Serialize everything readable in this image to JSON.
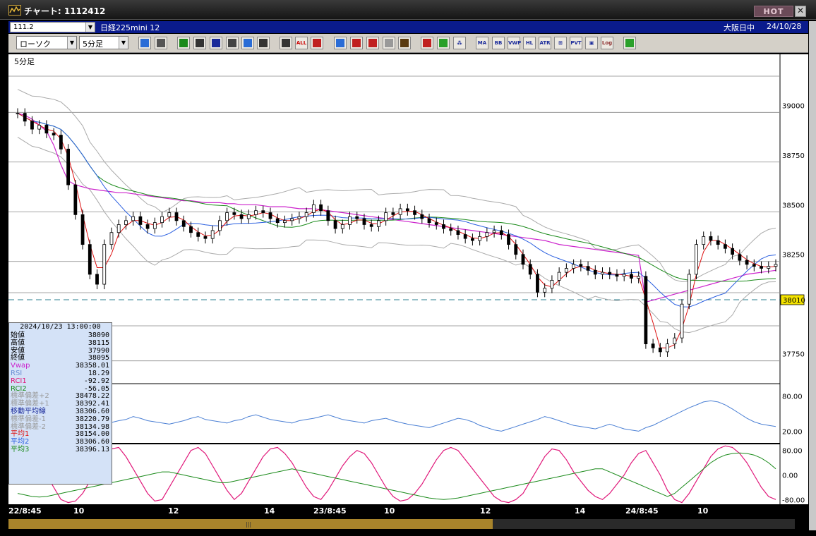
{
  "window": {
    "title": "チャート: 1112412",
    "hot_label": "HOT",
    "close_label": "✕"
  },
  "infobar": {
    "code_value": "111.2",
    "symbol_name": "日経225mini 12",
    "market_status": "大阪日中",
    "date": "24/10/28"
  },
  "toolbar": {
    "chart_type": "ローソク",
    "interval": "5分足",
    "buttons": [
      {
        "name": "zoom-icon",
        "color": "#2a6cd6"
      },
      {
        "name": "grid-icon",
        "color": "#555"
      },
      {
        "name": "pen-icon",
        "color": "#1a8a1a"
      },
      {
        "name": "line-tool-icon",
        "color": "#333"
      },
      {
        "name": "cursor-icon",
        "color": "#1a2a9a"
      },
      {
        "name": "page-icon",
        "color": "#444"
      },
      {
        "name": "trash-icon",
        "color": "#2a6cd6"
      },
      {
        "name": "candle-icon",
        "color": "#333"
      },
      {
        "name": "bar-icon",
        "color": "#333"
      },
      {
        "name": "all-icon",
        "text": "ALL",
        "color": "#c00"
      },
      {
        "name": "bird-icon",
        "color": "#c02020"
      },
      {
        "name": "search-plus-icon",
        "color": "#2a6cd6"
      },
      {
        "name": "compare-icon",
        "color": "#c02020"
      },
      {
        "name": "cross-icon",
        "color": "#c02020"
      },
      {
        "name": "gray-icon",
        "color": "#999"
      },
      {
        "name": "gear-icon",
        "color": "#5a3a10"
      },
      {
        "name": "brush-icon",
        "color": "#c02020"
      },
      {
        "name": "palette-icon",
        "color": "#2aa02a"
      },
      {
        "name": "chart-a-icon",
        "text": "⁂",
        "color": "#1a2a9a"
      },
      {
        "name": "ma-icon",
        "text": "MA",
        "color": "#1a2a9a"
      },
      {
        "name": "bb-icon",
        "text": "BB",
        "color": "#1a2a9a"
      },
      {
        "name": "vwap-icon",
        "text": "VWP",
        "color": "#1a2a9a"
      },
      {
        "name": "hl-icon",
        "text": "HL",
        "color": "#1a2a9a"
      },
      {
        "name": "atr-icon",
        "text": "ATR",
        "color": "#1a2a9a"
      },
      {
        "name": "pattern-icon",
        "text": "⊞",
        "color": "#1a2a9a"
      },
      {
        "name": "pvt-icon",
        "text": "PVT",
        "color": "#1a2a9a"
      },
      {
        "name": "window-icon",
        "text": "▣",
        "color": "#1a2a9a"
      },
      {
        "name": "log-icon",
        "text": "Log",
        "color": "#8a2a2a"
      },
      {
        "name": "export-icon",
        "color": "#2aa02a"
      }
    ]
  },
  "main_chart": {
    "interval_label": "5分足",
    "y_ticks": [
      "39000",
      "38750",
      "38500",
      "38250",
      "37750"
    ],
    "current_price": "38010",
    "colors": {
      "vwap": "#cc22cc",
      "ma1": "#dd1111",
      "ma2": "#2a5fe0",
      "ma3": "#1a8a1a",
      "band": "#aaaaaa",
      "candle": "#000000"
    }
  },
  "rsi_chart": {
    "y_ticks": [
      "80.00",
      "20.00"
    ],
    "color": "#4a7fd4"
  },
  "rci_chart": {
    "y_ticks": [
      "80.00",
      "0.00",
      "-80.00"
    ],
    "rci1_color": "#e0187a",
    "rci2_color": "#1a8a1a"
  },
  "x_axis": {
    "labels": [
      "22/8:45",
      "10",
      "12",
      "14",
      "23/8:45",
      "10",
      "12",
      "14",
      "24/8:45",
      "10"
    ]
  },
  "data_panel": {
    "datetime": "2024/10/23  13:00:00",
    "rows": [
      {
        "label": "始値",
        "value": "38090",
        "color": "#000000"
      },
      {
        "label": "高値",
        "value": "38115",
        "color": "#000000"
      },
      {
        "label": "安値",
        "value": "37990",
        "color": "#000000"
      },
      {
        "label": "終値",
        "value": "38095",
        "color": "#000000"
      },
      {
        "label": "Vwap",
        "value": "38358.01",
        "color": "#cc22cc"
      },
      {
        "label": "RSI",
        "value": "18.29",
        "color": "#6a8fd4"
      },
      {
        "label": "RCI1",
        "value": "-92.92",
        "color": "#e0187a"
      },
      {
        "label": "RCI2",
        "value": "-56.05",
        "color": "#1a8a1a"
      },
      {
        "label": "標準偏差+2",
        "value": "38478.22",
        "color": "#999999"
      },
      {
        "label": "標準偏差+1",
        "value": "38392.41",
        "color": "#999999"
      },
      {
        "label": "移動平均線",
        "value": "38306.60",
        "color": "#1a2a9a"
      },
      {
        "label": "標準偏差-1",
        "value": "38220.79",
        "color": "#999999"
      },
      {
        "label": "標準偏差-2",
        "value": "38134.98",
        "color": "#999999"
      },
      {
        "label": "平均1",
        "value": "38154.00",
        "color": "#dd1111"
      },
      {
        "label": "平均2",
        "value": "38306.60",
        "color": "#2a5fe0"
      },
      {
        "label": "平均3",
        "value": "38396.13",
        "color": "#1a8a1a"
      }
    ]
  },
  "chart_data": {
    "type": "line",
    "price_ylim": [
      37600,
      39150
    ],
    "close": [
      38960,
      38920,
      38880,
      38900,
      38860,
      38850,
      38780,
      38600,
      38450,
      38300,
      38150,
      38100,
      38300,
      38360,
      38400,
      38420,
      38440,
      38400,
      38380,
      38410,
      38440,
      38460,
      38420,
      38390,
      38360,
      38340,
      38330,
      38370,
      38420,
      38460,
      38450,
      38430,
      38450,
      38470,
      38460,
      38430,
      38410,
      38420,
      38430,
      38440,
      38460,
      38500,
      38470,
      38420,
      38380,
      38400,
      38440,
      38430,
      38400,
      38390,
      38420,
      38460,
      38450,
      38480,
      38470,
      38450,
      38430,
      38410,
      38400,
      38380,
      38370,
      38350,
      38330,
      38320,
      38340,
      38360,
      38370,
      38350,
      38300,
      38250,
      38200,
      38150,
      38060,
      38080,
      38120,
      38160,
      38180,
      38200,
      38190,
      38170,
      38150,
      38160,
      38150,
      38140,
      38150,
      38130,
      38140,
      37800,
      37780,
      37760,
      37800,
      37830,
      38000,
      38150,
      38300,
      38340,
      38320,
      38300,
      38280,
      38250,
      38220,
      38200,
      38190,
      38180,
      38190,
      38200
    ],
    "vwap": [
      38960,
      38950,
      38930,
      38900,
      38870,
      38800,
      38700,
      38620,
      38600,
      38590,
      38580,
      38575,
      38570,
      38565,
      38560,
      38560,
      38555,
      38550,
      38545,
      38540,
      38535,
      38530,
      38525,
      38520,
      38520,
      38515,
      38510,
      38510,
      38510,
      38505,
      38505,
      38500,
      38500,
      38500,
      38495,
      38490,
      38490,
      38490,
      38485,
      38480,
      38480,
      38480,
      38475,
      38470,
      38465,
      38460,
      38455,
      38450,
      38445,
      38440,
      38435,
      38430,
      38425,
      38420,
      38415,
      38410,
      38405,
      38400,
      38395,
      38390,
      38385,
      38380,
      38375,
      38370,
      38365,
      38360,
      38355,
      38350,
      38345,
      38340,
      38335,
      38330,
      38325,
      38320,
      38310,
      38300,
      38295,
      38290,
      38285,
      38280,
      38275,
      38270,
      38265,
      38260,
      38255,
      38250,
      38245,
      38010,
      38020,
      38030,
      38040,
      38050,
      38060,
      38070,
      38080,
      38090,
      38100,
      38110,
      38120,
      38130,
      38140,
      38150,
      38155,
      38160,
      38165,
      38170
    ],
    "rsi_ylim": [
      0,
      100
    ],
    "rsi": [
      35,
      38,
      42,
      40,
      45,
      50,
      55,
      48,
      44,
      40,
      35,
      30,
      32,
      35,
      38,
      40,
      45,
      42,
      38,
      36,
      34,
      32,
      35,
      38,
      42,
      45,
      40,
      38,
      36,
      34,
      38,
      40,
      45,
      48,
      44,
      40,
      38,
      36,
      34,
      38,
      40,
      42,
      45,
      48,
      44,
      40,
      38,
      36,
      34,
      38,
      40,
      42,
      38,
      35,
      32,
      30,
      28,
      26,
      30,
      34,
      38,
      42,
      40,
      36,
      30,
      26,
      22,
      20,
      24,
      28,
      32,
      36,
      40,
      45,
      42,
      38,
      34,
      30,
      28,
      26,
      24,
      28,
      32,
      28,
      24,
      22,
      20,
      26,
      30,
      36,
      42,
      48,
      54,
      60,
      65,
      70,
      72,
      70,
      65,
      58,
      50,
      42,
      36,
      32,
      30,
      28
    ],
    "rci_ylim": [
      -100,
      100
    ],
    "rci1": [
      80,
      60,
      40,
      20,
      0,
      -40,
      -80,
      -90,
      -85,
      -60,
      -20,
      20,
      60,
      85,
      90,
      60,
      20,
      -20,
      -60,
      -85,
      -80,
      -40,
      0,
      40,
      80,
      90,
      70,
      30,
      -10,
      -50,
      -80,
      -60,
      -20,
      20,
      60,
      85,
      90,
      70,
      40,
      0,
      -40,
      -70,
      -80,
      -50,
      -10,
      30,
      60,
      80,
      70,
      40,
      0,
      -40,
      -70,
      -85,
      -80,
      -60,
      -30,
      10,
      50,
      80,
      90,
      80,
      50,
      20,
      -10,
      -40,
      -70,
      -85,
      -90,
      -80,
      -60,
      -20,
      20,
      60,
      85,
      80,
      50,
      10,
      -20,
      -50,
      -70,
      -80,
      -60,
      -30,
      0,
      40,
      70,
      80,
      40,
      0,
      -50,
      -80,
      -90,
      -60,
      -20,
      20,
      60,
      85,
      95,
      90,
      70,
      40,
      0,
      -40,
      -70,
      -80
    ],
    "rci2": [
      -60,
      -65,
      -70,
      -72,
      -70,
      -65,
      -60,
      -55,
      -50,
      -45,
      -40,
      -35,
      -30,
      -25,
      -20,
      -15,
      -10,
      -5,
      0,
      5,
      10,
      10,
      5,
      0,
      -5,
      -10,
      -15,
      -20,
      -25,
      -25,
      -20,
      -15,
      -10,
      -5,
      0,
      5,
      10,
      15,
      20,
      15,
      10,
      5,
      0,
      -5,
      -10,
      -15,
      -20,
      -25,
      -30,
      -35,
      -40,
      -45,
      -50,
      -55,
      -60,
      -65,
      -70,
      -75,
      -78,
      -80,
      -78,
      -75,
      -70,
      -65,
      -60,
      -55,
      -50,
      -45,
      -40,
      -35,
      -30,
      -25,
      -20,
      -15,
      -10,
      -5,
      0,
      5,
      10,
      15,
      20,
      20,
      10,
      0,
      -10,
      -20,
      -30,
      -40,
      -50,
      -60,
      -70,
      -60,
      -40,
      -20,
      0,
      20,
      40,
      55,
      65,
      70,
      72,
      70,
      65,
      55,
      40,
      20
    ]
  }
}
